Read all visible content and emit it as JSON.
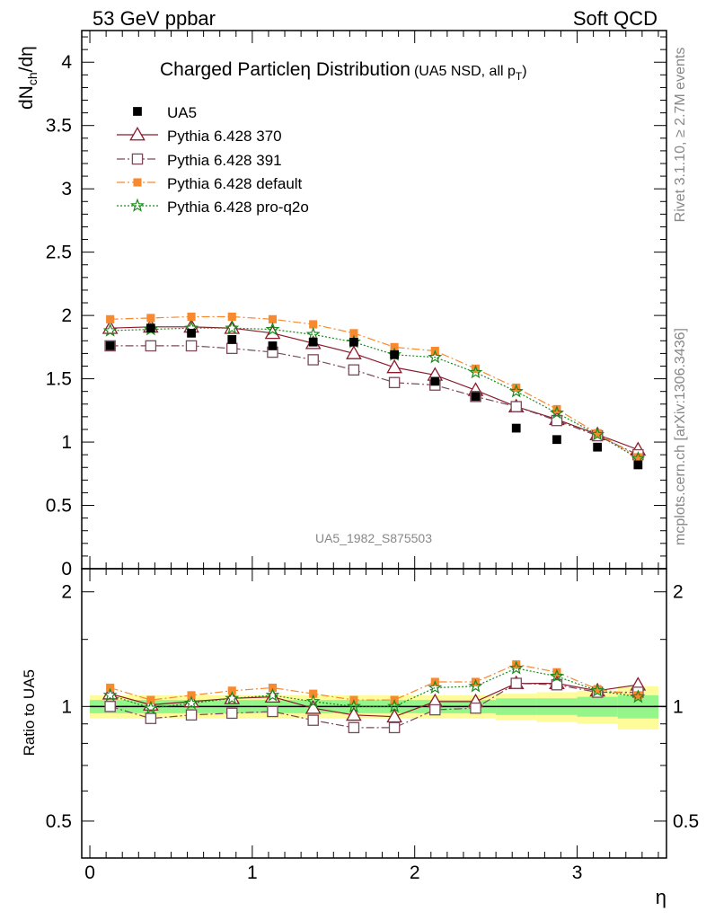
{
  "header": {
    "left": "53 GeV ppbar",
    "right": "Soft QCD"
  },
  "side_labels": {
    "rivet": "Rivet 3.1.10, ≥ 2.7M events",
    "mcplots": "mcplots.cern.ch [arXiv:1306.3436]"
  },
  "watermark": "UA5_1982_S875503",
  "axis_labels": {
    "y_main_base": "dN",
    "y_main_sub": "ch",
    "y_main_rest": "/dη",
    "y_ratio": "Ratio to UA5",
    "x": "η"
  },
  "title": {
    "main": "Charged Particleη Distribution",
    "paren_open": "(UA5 NSD, all p",
    "paren_sub": "T",
    "paren_close": ")"
  },
  "legend_entries": [
    "UA5",
    "Pythia 6.428 370",
    "Pythia 6.428 391",
    "Pythia 6.428 default",
    "Pythia 6.428 pro-q2o"
  ],
  "chart_data": {
    "type": "scatter",
    "xlim": [
      -0.05,
      3.55
    ],
    "main": {
      "ylim": [
        0,
        4.25
      ],
      "yticks": [
        0,
        0.5,
        1,
        1.5,
        2,
        2.5,
        3,
        3.5,
        4
      ],
      "yticklabels": [
        "0",
        "0.5",
        "1",
        "1.5",
        "2",
        "2.5",
        "3",
        "3.5",
        "4"
      ]
    },
    "ratio": {
      "ylim": [
        0.4,
        2.3
      ],
      "yticks": [
        0.5,
        1,
        2
      ],
      "yticklabels": [
        "0.5",
        "1",
        "2"
      ]
    },
    "xticks": [
      0,
      1,
      2,
      3
    ],
    "xticklabels": [
      "0",
      "1",
      "2",
      "3"
    ],
    "x": [
      0.125,
      0.375,
      0.625,
      0.875,
      1.125,
      1.375,
      1.625,
      1.875,
      2.125,
      2.375,
      2.625,
      2.875,
      3.125,
      3.375
    ],
    "bin_edges": [
      0,
      0.25,
      0.5,
      0.75,
      1.0,
      1.25,
      1.5,
      1.75,
      2.0,
      2.25,
      2.5,
      2.75,
      3.0,
      3.25,
      3.5
    ],
    "data": {
      "name": "UA5",
      "values": [
        1.76,
        1.9,
        1.86,
        1.81,
        1.76,
        1.79,
        1.79,
        1.69,
        1.48,
        1.36,
        1.11,
        1.02,
        0.96,
        0.82
      ],
      "band_inner": [
        0.04,
        0.04,
        0.04,
        0.04,
        0.04,
        0.04,
        0.04,
        0.04,
        0.04,
        0.04,
        0.05,
        0.05,
        0.06,
        0.07
      ],
      "band_outer": [
        0.07,
        0.07,
        0.07,
        0.07,
        0.07,
        0.07,
        0.07,
        0.07,
        0.07,
        0.07,
        0.08,
        0.09,
        0.1,
        0.13
      ]
    },
    "series": [
      {
        "name": "Pythia 6.428 370",
        "color": "#8b1a2b",
        "marker": "triangle-open",
        "dash": "",
        "values": [
          1.9,
          1.91,
          1.91,
          1.9,
          1.86,
          1.78,
          1.7,
          1.59,
          1.53,
          1.41,
          1.28,
          1.18,
          1.06,
          0.94
        ]
      },
      {
        "name": "Pythia 6.428 391",
        "color": "#7b4a5a",
        "marker": "square-open",
        "dash": "9,3,2,3",
        "values": [
          1.76,
          1.76,
          1.76,
          1.74,
          1.71,
          1.65,
          1.57,
          1.47,
          1.45,
          1.36,
          1.28,
          1.17,
          1.05,
          0.9
        ]
      },
      {
        "name": "Pythia 6.428 default",
        "color": "#f7892e",
        "marker": "square-filled",
        "dash": "9,3,2,3",
        "values": [
          1.97,
          1.98,
          1.99,
          1.99,
          1.97,
          1.93,
          1.86,
          1.75,
          1.72,
          1.58,
          1.43,
          1.26,
          1.07,
          0.88
        ]
      },
      {
        "name": "Pythia 6.428 pro-q2o",
        "color": "#1a8a1a",
        "marker": "star",
        "dash": "2,2",
        "values": [
          1.88,
          1.89,
          1.9,
          1.9,
          1.89,
          1.85,
          1.79,
          1.69,
          1.67,
          1.55,
          1.4,
          1.23,
          1.06,
          0.87
        ]
      }
    ],
    "ratio_series": [
      {
        "name": "Pythia 6.428 370",
        "values": [
          1.08,
          1.01,
          1.03,
          1.05,
          1.06,
          0.99,
          0.95,
          0.94,
          1.03,
          1.03,
          1.15,
          1.15,
          1.1,
          1.14
        ]
      },
      {
        "name": "Pythia 6.428 391",
        "values": [
          1.0,
          0.93,
          0.95,
          0.96,
          0.97,
          0.92,
          0.88,
          0.88,
          0.98,
          0.99,
          1.15,
          1.14,
          1.09,
          1.09
        ]
      },
      {
        "name": "Pythia 6.428 default",
        "values": [
          1.12,
          1.04,
          1.07,
          1.1,
          1.12,
          1.08,
          1.04,
          1.04,
          1.16,
          1.16,
          1.29,
          1.23,
          1.11,
          1.07
        ]
      },
      {
        "name": "Pythia 6.428 pro-q2o",
        "values": [
          1.07,
          0.99,
          1.02,
          1.05,
          1.07,
          1.03,
          1.0,
          1.0,
          1.12,
          1.13,
          1.26,
          1.2,
          1.1,
          1.06
        ]
      }
    ]
  }
}
